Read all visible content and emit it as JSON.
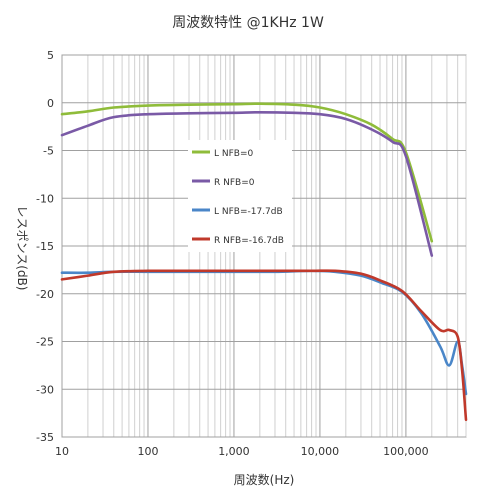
{
  "chart_data": {
    "type": "line",
    "title": "周波数特性 @1KHz 1W",
    "xlabel": "周波数(Hz)",
    "ylabel": "レスポンス(dB)",
    "x_scale": "log",
    "xlim": [
      10,
      500000
    ],
    "ylim": [
      -35,
      5
    ],
    "x_ticks": [
      10,
      100,
      1000,
      10000,
      100000
    ],
    "x_tick_labels": [
      "10",
      "100",
      "1,000",
      "10,000",
      "100,000"
    ],
    "y_ticks": [
      5,
      0,
      -5,
      -10,
      -15,
      -20,
      -25,
      -30,
      -35
    ],
    "y_tick_labels": [
      "5",
      "0",
      "-5",
      "-10",
      "-15",
      "-20",
      "-25",
      "-30",
      "-35"
    ],
    "grid": true,
    "legend_position": "left-center",
    "series": [
      {
        "name": "L NFB=0",
        "color": "#8fbc3a",
        "x": [
          10,
          20,
          40,
          100,
          300,
          1000,
          2000,
          5000,
          10000,
          20000,
          40000,
          70000,
          100000,
          200000
        ],
        "y": [
          -1.2,
          -0.9,
          -0.5,
          -0.3,
          -0.2,
          -0.15,
          -0.1,
          -0.2,
          -0.5,
          -1.2,
          -2.3,
          -3.8,
          -5.2,
          -14.5
        ]
      },
      {
        "name": "R NFB=0",
        "color": "#7a5aa6",
        "x": [
          10,
          20,
          40,
          100,
          300,
          1000,
          2000,
          5000,
          10000,
          20000,
          40000,
          70000,
          100000,
          200000
        ],
        "y": [
          -3.4,
          -2.4,
          -1.5,
          -1.2,
          -1.1,
          -1.05,
          -1.0,
          -1.05,
          -1.2,
          -1.7,
          -2.8,
          -4.1,
          -5.6,
          -16.0
        ]
      },
      {
        "name": "L NFB=-17.7dB",
        "color": "#4a86c8",
        "x": [
          10,
          20,
          40,
          100,
          300,
          1000,
          3000,
          8000,
          15000,
          30000,
          50000,
          90000,
          150000,
          250000,
          320000,
          400000,
          450000,
          500000
        ],
        "y": [
          -17.8,
          -17.8,
          -17.7,
          -17.7,
          -17.7,
          -17.7,
          -17.7,
          -17.6,
          -17.7,
          -18.1,
          -18.8,
          -19.8,
          -22.0,
          -25.5,
          -27.5,
          -25.0,
          -27.5,
          -30.5
        ]
      },
      {
        "name": "R NFB=-16.7dB",
        "color": "#c0392b",
        "x": [
          10,
          20,
          40,
          100,
          300,
          1000,
          3000,
          8000,
          15000,
          30000,
          50000,
          90000,
          150000,
          250000,
          320000,
          400000,
          450000,
          500000
        ],
        "y": [
          -18.5,
          -18.1,
          -17.7,
          -17.6,
          -17.6,
          -17.6,
          -17.6,
          -17.6,
          -17.6,
          -17.9,
          -18.6,
          -19.7,
          -21.8,
          -23.8,
          -23.8,
          -24.5,
          -28.0,
          -33.2
        ]
      }
    ]
  }
}
